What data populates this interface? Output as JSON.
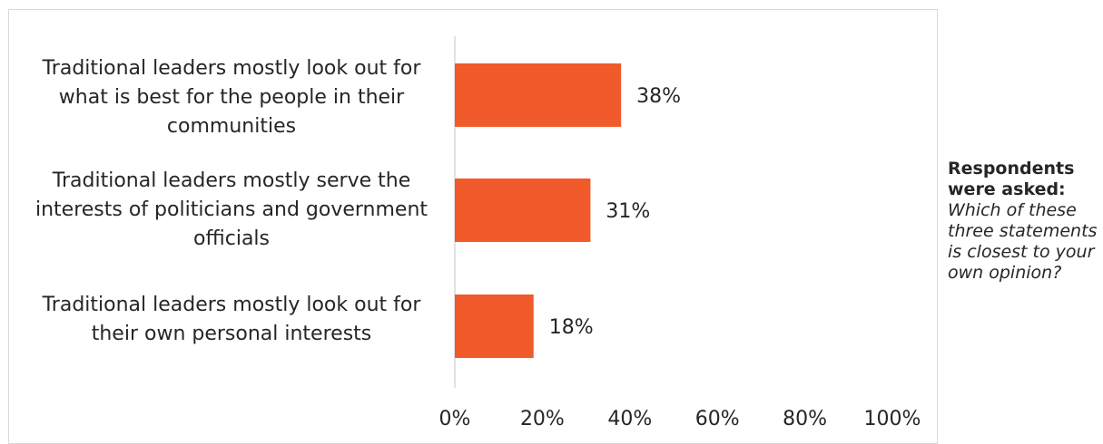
{
  "chart_data": {
    "type": "bar",
    "orientation": "horizontal",
    "categories": [
      "Traditional leaders mostly look out for what is best for the people in their communities",
      "Traditional leaders mostly serve the interests of politicians and government officials",
      "Traditional leaders mostly look out for their own personal interests"
    ],
    "values": [
      38,
      31,
      18
    ],
    "value_labels": [
      "38%",
      "31%",
      "18%"
    ],
    "xlim": [
      0,
      100
    ],
    "x_ticks": [
      "0%",
      "20%",
      "40%",
      "60%",
      "80%",
      "100%"
    ],
    "bar_color": "#F15A2B",
    "grid": false,
    "legend": "none"
  },
  "note": {
    "heading": "Respondents were asked:",
    "question": "Which of these three statements is closest to your own opinion?"
  },
  "colors": {
    "bar": "#F15A2B",
    "text": "#262626",
    "axis": "#d9d9d9"
  }
}
